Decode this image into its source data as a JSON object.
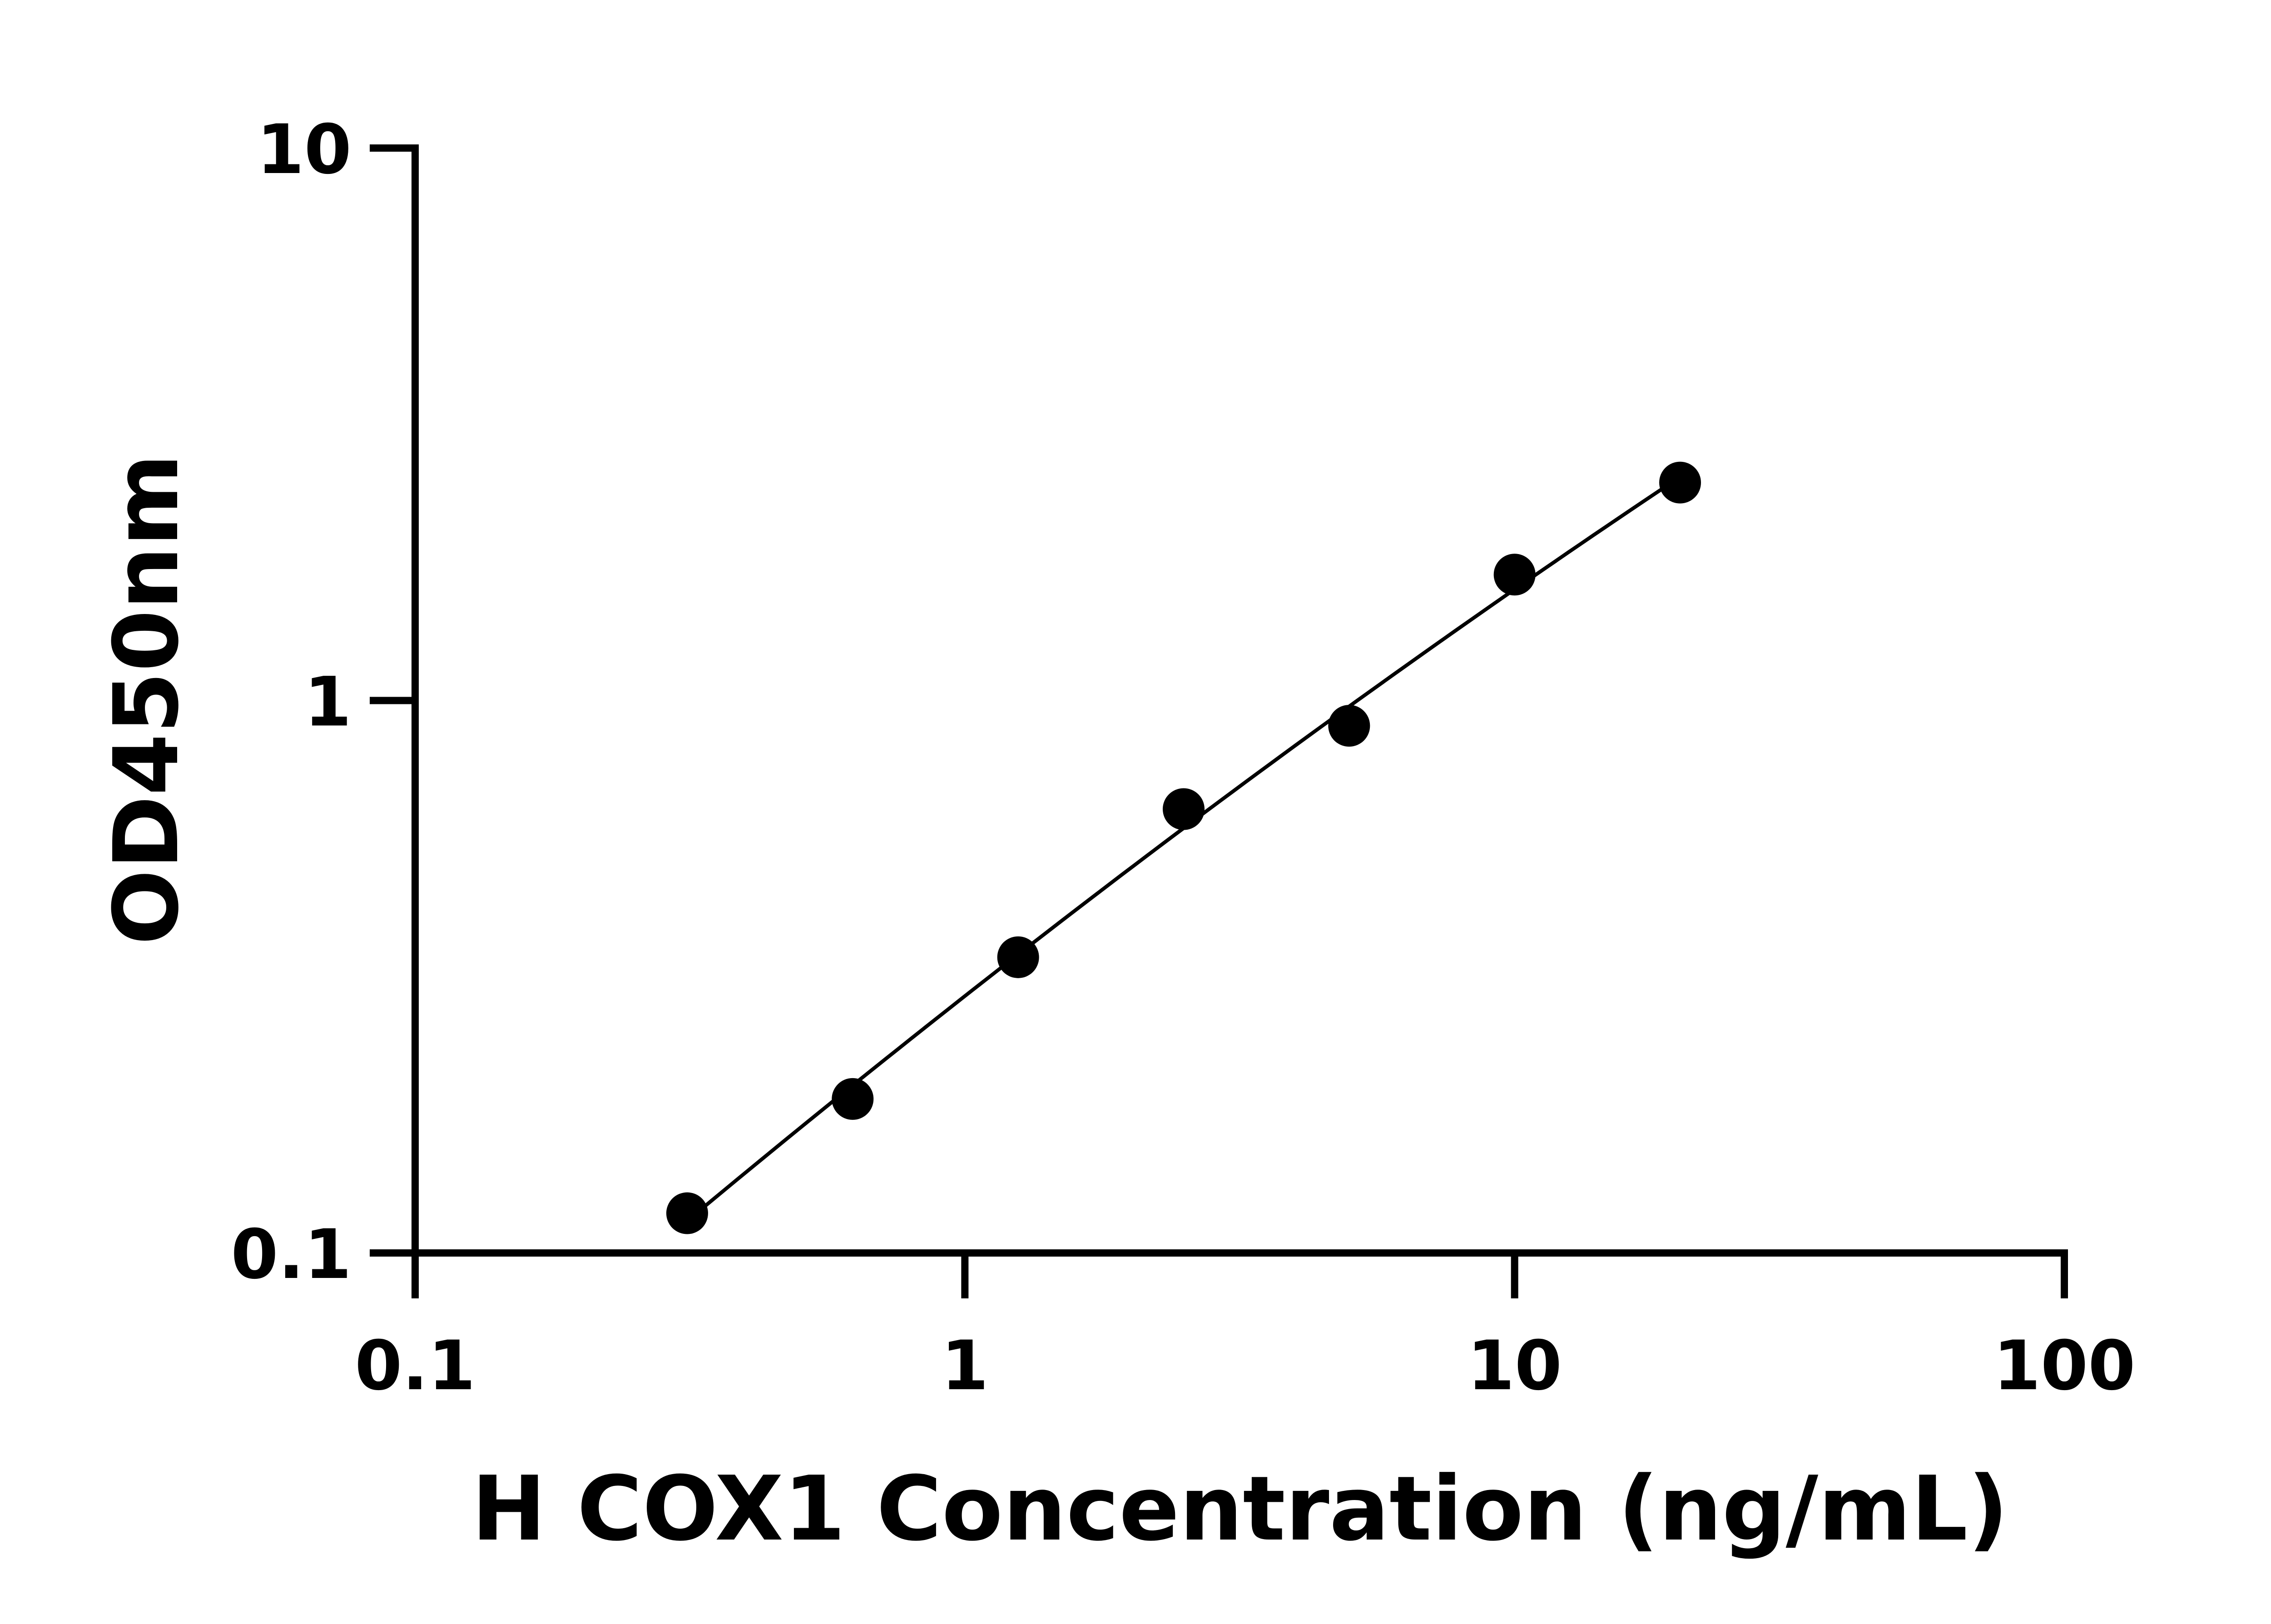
{
  "chart_data": {
    "type": "scatter",
    "title": "",
    "xlabel": "H COX1 Concentration (ng/mL)",
    "ylabel": "OD450nm",
    "xscale": "log",
    "yscale": "log",
    "xlim": [
      0.1,
      100
    ],
    "ylim": [
      0.1,
      10
    ],
    "xticks": [
      0.1,
      1,
      10,
      100
    ],
    "xtick_labels": [
      "0.1",
      "1",
      "10",
      "100"
    ],
    "yticks": [
      0.1,
      1,
      10
    ],
    "ytick_labels": [
      "0.1",
      "1",
      "10"
    ],
    "grid": false,
    "legend": "none",
    "fit_curve": true,
    "colors": {
      "points": "#000000",
      "curve": "#000000",
      "axes": "#000000"
    },
    "series": [
      {
        "x": [
          0.3125,
          0.625,
          1.25,
          2.5,
          5,
          10,
          20
        ],
        "y": [
          0.118,
          0.19,
          0.343,
          0.636,
          0.9,
          1.69,
          2.48
        ]
      }
    ]
  }
}
